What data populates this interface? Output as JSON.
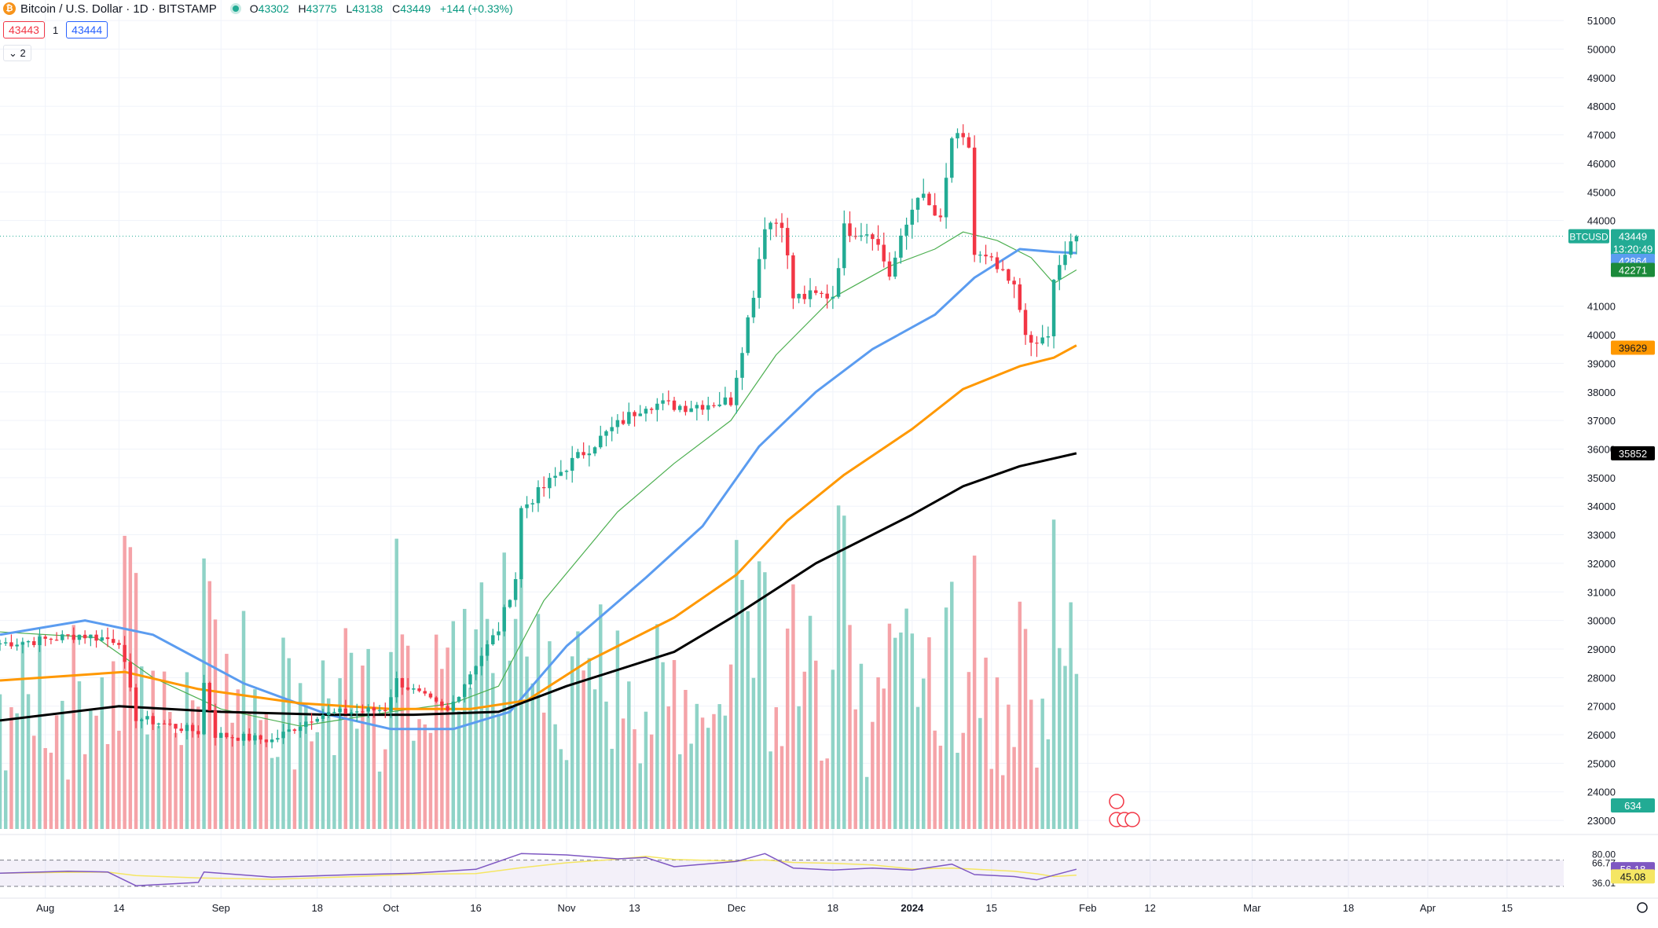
{
  "header": {
    "symbol_title": "Bitcoin / U.S. Dollar · 1D · BITSTAMP",
    "coin_icon": "bitcoin-icon",
    "open_label": "O",
    "open": "43302",
    "high_label": "H",
    "high": "43775",
    "low_label": "L",
    "low": "43138",
    "close_label": "C",
    "close": "43449",
    "change": "+144 (+0.33%)",
    "sell_price": "43443",
    "spread": "1",
    "buy_price": "43444",
    "indicators_toggle": "2"
  },
  "colors": {
    "up": "#22ab94",
    "down": "#f23645",
    "volume_up": "#8fd3c7",
    "volume_down": "#f5a3a8",
    "ma_green": "#4caf50",
    "ma_blue": "#5b9cf0",
    "ma_orange": "#ff9800",
    "ma_black": "#000000",
    "rsi_line": "#7e57c2",
    "rsi_ma": "#f5e663"
  },
  "chart_data": {
    "type": "candlestick",
    "x_ticks": [
      {
        "label": "Aug",
        "date": "2023-08-01"
      },
      {
        "label": "14",
        "date": "2023-08-14"
      },
      {
        "label": "Sep",
        "date": "2023-09-01"
      },
      {
        "label": "18",
        "date": "2023-09-18"
      },
      {
        "label": "Oct",
        "date": "2023-10-01"
      },
      {
        "label": "16",
        "date": "2023-10-16"
      },
      {
        "label": "Nov",
        "date": "2023-11-01"
      },
      {
        "label": "13",
        "date": "2023-11-13"
      },
      {
        "label": "Dec",
        "date": "2023-12-01"
      },
      {
        "label": "18",
        "date": "2023-12-18"
      },
      {
        "label": "2024",
        "date": "2024-01-01"
      },
      {
        "label": "15",
        "date": "2024-01-15"
      },
      {
        "label": "Feb",
        "date": "2024-02-01"
      },
      {
        "label": "12",
        "date": "2024-02-12"
      },
      {
        "label": "Mar",
        "date": "2024-03-01"
      },
      {
        "label": "18",
        "date": "2024-03-18"
      },
      {
        "label": "Apr",
        "date": "2024-04-01"
      },
      {
        "label": "15",
        "date": "2024-04-15"
      }
    ],
    "y_ticks": [
      "51000",
      "50000",
      "49000",
      "48000",
      "47000",
      "46000",
      "45000",
      "44000",
      "41000",
      "40000",
      "39000",
      "38000",
      "37000",
      "36000",
      "35000",
      "34000",
      "33000",
      "32000",
      "31000",
      "30000",
      "29000",
      "28000",
      "27000",
      "26000",
      "25000",
      "24000",
      "23000"
    ],
    "ylim": [
      22700,
      51500
    ],
    "price_points": [
      [
        "2023-07-24",
        29200
      ],
      [
        "2023-07-31",
        29300
      ],
      [
        "2023-08-07",
        29500
      ],
      [
        "2023-08-14",
        29300
      ],
      [
        "2023-08-17",
        26600
      ],
      [
        "2023-08-28",
        26100
      ],
      [
        "2023-08-29",
        27800
      ],
      [
        "2023-08-31",
        26000
      ],
      [
        "2023-09-10",
        25800
      ],
      [
        "2023-09-18",
        26700
      ],
      [
        "2023-09-30",
        26900
      ],
      [
        "2023-10-02",
        27900
      ],
      [
        "2023-10-11",
        26800
      ],
      [
        "2023-10-16",
        28500
      ],
      [
        "2023-10-20",
        29700
      ],
      [
        "2023-10-23",
        31500
      ],
      [
        "2023-10-24",
        33900
      ],
      [
        "2023-11-01",
        35400
      ],
      [
        "2023-11-09",
        36700
      ],
      [
        "2023-11-15",
        37600
      ],
      [
        "2023-11-22",
        37500
      ],
      [
        "2023-11-30",
        37700
      ],
      [
        "2023-12-04",
        41500
      ],
      [
        "2023-12-06",
        43900
      ],
      [
        "2023-12-09",
        44000
      ],
      [
        "2023-12-11",
        41300
      ],
      [
        "2023-12-18",
        41400
      ],
      [
        "2023-12-20",
        43700
      ],
      [
        "2023-12-25",
        43600
      ],
      [
        "2023-12-28",
        42100
      ],
      [
        "2024-01-02",
        45000
      ],
      [
        "2024-01-06",
        43900
      ],
      [
        "2024-01-08",
        46900
      ],
      [
        "2024-01-11",
        46600
      ],
      [
        "2024-01-12",
        42800
      ],
      [
        "2024-01-15",
        42500
      ],
      [
        "2024-01-19",
        41600
      ],
      [
        "2024-01-22",
        39500
      ],
      [
        "2024-01-25",
        40000
      ],
      [
        "2024-01-26",
        41800
      ],
      [
        "2024-01-29",
        43300
      ],
      [
        "2024-01-30",
        43449
      ]
    ],
    "price_label": "BTCUSD",
    "last_price": "43449",
    "countdown": "13:20:49",
    "volume_value": "634",
    "moving_averages": [
      {
        "name": "ma-green",
        "last": "42271",
        "color": "#4caf50",
        "points": [
          [
            "2023-07-24",
            29600
          ],
          [
            "2023-08-10",
            29400
          ],
          [
            "2023-08-20",
            28000
          ],
          [
            "2023-09-01",
            26900
          ],
          [
            "2023-09-15",
            26300
          ],
          [
            "2023-10-01",
            26800
          ],
          [
            "2023-10-12",
            27100
          ],
          [
            "2023-10-20",
            27700
          ],
          [
            "2023-10-28",
            30700
          ],
          [
            "2023-11-10",
            33800
          ],
          [
            "2023-11-20",
            35500
          ],
          [
            "2023-11-30",
            37000
          ],
          [
            "2023-12-08",
            39300
          ],
          [
            "2023-12-18",
            41300
          ],
          [
            "2023-12-28",
            42400
          ],
          [
            "2024-01-05",
            43000
          ],
          [
            "2024-01-10",
            43600
          ],
          [
            "2024-01-16",
            43300
          ],
          [
            "2024-01-22",
            42700
          ],
          [
            "2024-01-26",
            41800
          ],
          [
            "2024-01-30",
            42271
          ]
        ]
      },
      {
        "name": "ma-blue",
        "last": "42864",
        "color": "#5b9cf0",
        "points": [
          [
            "2023-07-24",
            29500
          ],
          [
            "2023-08-08",
            30000
          ],
          [
            "2023-08-20",
            29500
          ],
          [
            "2023-09-05",
            27800
          ],
          [
            "2023-09-20",
            26700
          ],
          [
            "2023-10-01",
            26200
          ],
          [
            "2023-10-12",
            26200
          ],
          [
            "2023-10-22",
            26800
          ],
          [
            "2023-11-01",
            29100
          ],
          [
            "2023-11-15",
            31500
          ],
          [
            "2023-11-25",
            33300
          ],
          [
            "2023-12-05",
            36100
          ],
          [
            "2023-12-15",
            38000
          ],
          [
            "2023-12-25",
            39500
          ],
          [
            "2024-01-05",
            40700
          ],
          [
            "2024-01-12",
            42000
          ],
          [
            "2024-01-20",
            43000
          ],
          [
            "2024-01-26",
            42900
          ],
          [
            "2024-01-30",
            42864
          ]
        ]
      },
      {
        "name": "ma-orange",
        "last": "39629",
        "color": "#ff9800",
        "points": [
          [
            "2023-07-24",
            27900
          ],
          [
            "2023-08-15",
            28200
          ],
          [
            "2023-08-28",
            27600
          ],
          [
            "2023-09-15",
            27100
          ],
          [
            "2023-10-01",
            26900
          ],
          [
            "2023-10-15",
            26900
          ],
          [
            "2023-10-25",
            27200
          ],
          [
            "2023-11-05",
            28600
          ],
          [
            "2023-11-20",
            30100
          ],
          [
            "2023-12-01",
            31600
          ],
          [
            "2023-12-10",
            33500
          ],
          [
            "2023-12-20",
            35100
          ],
          [
            "2024-01-01",
            36700
          ],
          [
            "2024-01-10",
            38100
          ],
          [
            "2024-01-20",
            38900
          ],
          [
            "2024-01-26",
            39200
          ],
          [
            "2024-01-30",
            39629
          ]
        ]
      },
      {
        "name": "ma-black",
        "last": "35852",
        "color": "#000000",
        "points": [
          [
            "2023-07-24",
            26500
          ],
          [
            "2023-08-14",
            27000
          ],
          [
            "2023-09-01",
            26800
          ],
          [
            "2023-09-20",
            26700
          ],
          [
            "2023-10-05",
            26700
          ],
          [
            "2023-10-20",
            26800
          ],
          [
            "2023-11-01",
            27700
          ],
          [
            "2023-11-20",
            28900
          ],
          [
            "2023-12-01",
            30200
          ],
          [
            "2023-12-15",
            32000
          ],
          [
            "2024-01-01",
            33700
          ],
          [
            "2024-01-10",
            34700
          ],
          [
            "2024-01-20",
            35400
          ],
          [
            "2024-01-30",
            35852
          ]
        ]
      }
    ],
    "rsi": {
      "ylim": [
        30,
        90
      ],
      "y_ticks": [
        "80.00",
        "66.77",
        "36.01"
      ],
      "band_upper": 70,
      "band_lower": 30,
      "value": "56.18",
      "ma_value": "45.08",
      "points": [
        [
          "2023-07-24",
          50
        ],
        [
          "2023-08-05",
          53
        ],
        [
          "2023-08-12",
          52
        ],
        [
          "2023-08-17",
          31
        ],
        [
          "2023-08-28",
          36
        ],
        [
          "2023-08-29",
          52
        ],
        [
          "2023-09-10",
          44
        ],
        [
          "2023-09-25",
          48
        ],
        [
          "2023-10-05",
          50
        ],
        [
          "2023-10-16",
          56
        ],
        [
          "2023-10-24",
          80
        ],
        [
          "2023-11-01",
          78
        ],
        [
          "2023-11-10",
          72
        ],
        [
          "2023-11-15",
          74
        ],
        [
          "2023-11-20",
          60
        ],
        [
          "2023-12-01",
          68
        ],
        [
          "2023-12-06",
          80
        ],
        [
          "2023-12-11",
          58
        ],
        [
          "2023-12-18",
          55
        ],
        [
          "2023-12-25",
          58
        ],
        [
          "2024-01-01",
          55
        ],
        [
          "2024-01-08",
          64
        ],
        [
          "2024-01-12",
          48
        ],
        [
          "2024-01-19",
          45
        ],
        [
          "2024-01-23",
          40
        ],
        [
          "2024-01-26",
          47
        ],
        [
          "2024-01-30",
          56.18
        ]
      ]
    }
  }
}
